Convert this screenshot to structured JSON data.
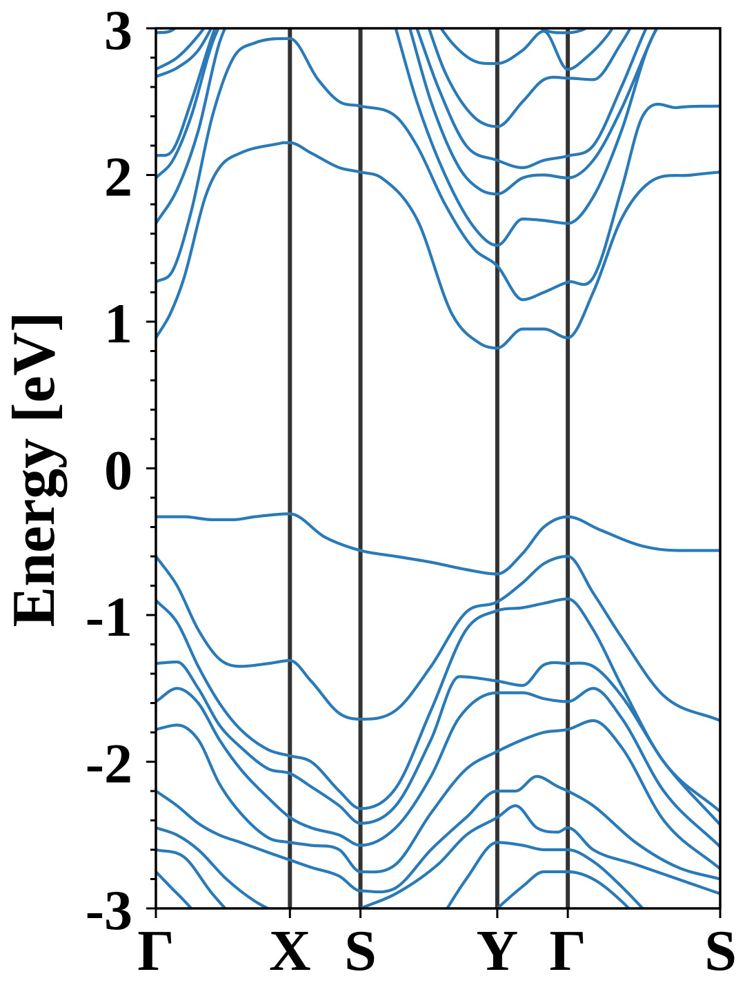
{
  "chart_data": {
    "type": "line",
    "title": "",
    "xlabel": "",
    "ylabel": "Energy [eV]",
    "ylim": [
      -3,
      3
    ],
    "yticks": [
      "-3",
      "-2",
      "-1",
      "0",
      "1",
      "2",
      "3"
    ],
    "yminor_step": 0.2,
    "grid": false,
    "legend": "none",
    "line_color": "#2a7ab8",
    "kline_color": "#333333",
    "xlim": [
      0,
      4.0
    ],
    "kpoints": [
      {
        "label": "Γ",
        "x": 0.0
      },
      {
        "label": "X",
        "x": 0.95
      },
      {
        "label": "S",
        "x": 1.45
      },
      {
        "label": "Y",
        "x": 2.42
      },
      {
        "label": "Γ",
        "x": 2.92
      },
      {
        "label": "S",
        "x": 4.0
      }
    ],
    "bands": [
      {
        "x": [
          0,
          0.2,
          0.4,
          0.55,
          0.7,
          0.95,
          1.2,
          1.45,
          1.7,
          1.95,
          2.2,
          2.42,
          2.6,
          2.75,
          2.92,
          3.15,
          3.45,
          3.7,
          4.0
        ],
        "y": [
          -0.33,
          -0.33,
          -0.35,
          -0.35,
          -0.33,
          -0.31,
          -0.47,
          -0.56,
          -0.6,
          -0.64,
          -0.69,
          -0.72,
          -0.58,
          -0.4,
          -0.33,
          -0.42,
          -0.53,
          -0.56,
          -0.56
        ]
      },
      {
        "x": [
          0,
          0.15,
          0.3,
          0.45,
          0.6,
          0.8,
          0.95,
          1.1,
          1.3,
          1.45,
          1.7,
          1.95,
          2.2,
          2.42,
          2.6,
          2.75,
          2.92,
          3.1,
          3.3,
          3.6,
          4.0
        ],
        "y": [
          -0.6,
          -0.8,
          -1.1,
          -1.3,
          -1.35,
          -1.33,
          -1.31,
          -1.45,
          -1.67,
          -1.71,
          -1.65,
          -1.35,
          -0.98,
          -0.91,
          -0.78,
          -0.65,
          -0.6,
          -0.85,
          -1.15,
          -1.55,
          -1.72
        ]
      },
      {
        "x": [
          0,
          0.15,
          0.3,
          0.45,
          0.6,
          0.8,
          0.95,
          1.1,
          1.3,
          1.45,
          1.7,
          1.95,
          2.2,
          2.42,
          2.6,
          2.75,
          2.92,
          3.1,
          3.3,
          3.6,
          4.0
        ],
        "y": [
          -0.9,
          -1.05,
          -1.35,
          -1.6,
          -1.78,
          -1.92,
          -1.96,
          -2.0,
          -2.2,
          -2.32,
          -2.18,
          -1.65,
          -1.1,
          -0.97,
          -0.95,
          -0.92,
          -0.89,
          -1.1,
          -1.48,
          -2.0,
          -2.34
        ]
      },
      {
        "x": [
          0,
          0.15,
          0.3,
          0.45,
          0.6,
          0.8,
          0.95,
          1.1,
          1.3,
          1.45,
          1.7,
          1.95,
          2.15,
          2.42,
          2.6,
          2.75,
          2.92,
          3.1,
          3.3,
          3.6,
          4.0
        ],
        "y": [
          -1.33,
          -1.32,
          -1.5,
          -1.75,
          -1.9,
          -2.05,
          -2.08,
          -2.17,
          -2.3,
          -2.42,
          -2.3,
          -1.85,
          -1.42,
          -1.45,
          -1.48,
          -1.34,
          -1.33,
          -1.35,
          -1.55,
          -2.0,
          -2.43
        ]
      },
      {
        "x": [
          0,
          0.15,
          0.3,
          0.45,
          0.6,
          0.8,
          0.95,
          1.1,
          1.3,
          1.45,
          1.7,
          1.95,
          2.15,
          2.42,
          2.6,
          2.75,
          2.92,
          3.1,
          3.3,
          3.6,
          4.0
        ],
        "y": [
          -1.59,
          -1.5,
          -1.6,
          -1.85,
          -2.05,
          -2.25,
          -2.38,
          -2.45,
          -2.5,
          -2.57,
          -2.45,
          -2.1,
          -1.7,
          -1.53,
          -1.53,
          -1.57,
          -1.59,
          -1.5,
          -1.7,
          -2.2,
          -2.58
        ]
      },
      {
        "x": [
          0,
          0.15,
          0.3,
          0.45,
          0.6,
          0.8,
          0.95,
          1.1,
          1.3,
          1.45,
          1.7,
          1.95,
          2.2,
          2.42,
          2.6,
          2.75,
          2.92,
          3.1,
          3.3,
          3.6,
          4.0
        ],
        "y": [
          -1.78,
          -1.75,
          -1.85,
          -2.15,
          -2.35,
          -2.52,
          -2.55,
          -2.57,
          -2.6,
          -2.75,
          -2.7,
          -2.35,
          -2.05,
          -1.93,
          -1.85,
          -1.8,
          -1.78,
          -1.72,
          -1.9,
          -2.4,
          -2.73
        ]
      },
      {
        "x": [
          0,
          0.15,
          0.3,
          0.45,
          0.6,
          0.8,
          0.95,
          1.1,
          1.3,
          1.45,
          1.7,
          1.95,
          2.2,
          2.42,
          2.55,
          2.7,
          2.85,
          2.92,
          3.1,
          3.4,
          3.7,
          4.0
        ],
        "y": [
          -2.2,
          -2.3,
          -2.42,
          -2.5,
          -2.55,
          -2.62,
          -2.67,
          -2.72,
          -2.78,
          -2.88,
          -2.86,
          -2.6,
          -2.38,
          -2.2,
          -2.2,
          -2.1,
          -2.17,
          -2.2,
          -2.3,
          -2.55,
          -2.72,
          -2.8
        ]
      },
      {
        "x": [
          0,
          0.15,
          0.3,
          0.5,
          0.7,
          0.9,
          1.0
        ],
        "y": [
          -2.45,
          -2.5,
          -2.6,
          -2.8,
          -2.95,
          -3.05,
          -3.1
        ]
      },
      {
        "x": [
          1.45,
          1.7,
          2.0,
          2.2,
          2.42,
          2.55,
          2.7,
          2.85,
          2.92,
          3.1,
          3.4,
          3.7,
          3.85,
          4.0
        ],
        "y": [
          -3.0,
          -2.9,
          -2.7,
          -2.5,
          -2.38,
          -2.3,
          -2.45,
          -2.48,
          -2.45,
          -2.6,
          -2.7,
          -2.8,
          -2.85,
          -2.9
        ]
      },
      {
        "x": [
          0,
          0.2,
          0.4,
          0.6,
          0.8
        ],
        "y": [
          -2.6,
          -2.65,
          -2.9,
          -3.1,
          -3.2
        ]
      },
      {
        "x": [
          2.0,
          2.2,
          2.42,
          2.6,
          2.75,
          2.92,
          3.1,
          3.3,
          3.5
        ],
        "y": [
          -3.1,
          -2.8,
          -2.55,
          -2.57,
          -2.6,
          -2.6,
          -2.68,
          -2.85,
          -3.05
        ]
      },
      {
        "x": [
          0,
          0.1,
          0.25,
          0.4,
          0.5
        ],
        "y": [
          -2.75,
          -2.85,
          -3.0,
          -3.2,
          -3.3
        ]
      },
      {
        "x": [
          2.2,
          2.42,
          2.6,
          2.75,
          2.92,
          3.1,
          3.3,
          3.45
        ],
        "y": [
          -3.2,
          -3.0,
          -2.85,
          -2.75,
          -2.75,
          -2.8,
          -2.95,
          -3.1
        ]
      },
      {
        "x": [
          0,
          0.1,
          0.2,
          0.35,
          0.45,
          0.6,
          0.9
        ],
        "y": [
          0.89,
          1.05,
          1.3,
          1.85,
          2.05,
          2.15,
          2.22
        ]
      },
      {
        "x": [
          0.9,
          0.95,
          1.1,
          1.3,
          1.45,
          1.6,
          1.85,
          2.1,
          2.3,
          2.42,
          2.6,
          2.75,
          2.92,
          3.1,
          3.3,
          3.5,
          3.8,
          4.0
        ],
        "y": [
          2.22,
          2.22,
          2.15,
          2.05,
          2.02,
          1.98,
          1.7,
          1.05,
          0.85,
          0.82,
          0.95,
          0.95,
          0.89,
          1.2,
          1.7,
          1.95,
          2.0,
          2.02
        ]
      },
      {
        "x": [
          0,
          0.12,
          0.25,
          0.4,
          0.55,
          0.7,
          0.95,
          1.15,
          1.3,
          1.45,
          1.7,
          1.85,
          2.05,
          2.25,
          2.42,
          2.6,
          2.75,
          2.92,
          3.1,
          3.3,
          3.45,
          3.7,
          4.0
        ],
        "y": [
          1.27,
          1.35,
          1.75,
          2.4,
          2.8,
          2.9,
          2.93,
          2.65,
          2.5,
          2.47,
          2.4,
          2.2,
          1.8,
          1.5,
          1.38,
          1.15,
          1.2,
          1.27,
          1.3,
          1.9,
          2.4,
          2.46,
          2.47
        ]
      },
      {
        "x": [
          0,
          0.15,
          0.3,
          0.45,
          0.6
        ],
        "y": [
          1.67,
          1.9,
          2.3,
          2.9,
          3.2
        ]
      },
      {
        "x": [
          1.7,
          1.85,
          2.05,
          2.25,
          2.42,
          2.6,
          2.75,
          2.92,
          3.1,
          3.3,
          3.5,
          3.7
        ],
        "y": [
          3.0,
          2.5,
          2.0,
          1.65,
          1.52,
          1.7,
          1.69,
          1.67,
          1.85,
          2.3,
          2.9,
          3.2
        ]
      },
      {
        "x": [
          0,
          0.12,
          0.25,
          0.4,
          0.55
        ],
        "y": [
          1.98,
          2.1,
          2.4,
          2.9,
          3.2
        ]
      },
      {
        "x": [
          1.8,
          1.95,
          2.15,
          2.3,
          2.42,
          2.6,
          2.75,
          2.92,
          3.1,
          3.3,
          3.5,
          3.65
        ],
        "y": [
          3.0,
          2.5,
          2.05,
          1.9,
          1.87,
          1.98,
          2.0,
          1.98,
          2.1,
          2.45,
          2.9,
          3.2
        ]
      },
      {
        "x": [
          0,
          0.12,
          0.25,
          0.4,
          0.5
        ],
        "y": [
          2.13,
          2.17,
          2.5,
          2.95,
          3.2
        ]
      },
      {
        "x": [
          1.85,
          2.0,
          2.2,
          2.42,
          2.6,
          2.75,
          2.92,
          3.1,
          3.3,
          3.5,
          3.6
        ],
        "y": [
          3.0,
          2.6,
          2.2,
          2.1,
          2.05,
          2.1,
          2.13,
          2.2,
          2.6,
          3.05,
          3.2
        ]
      },
      {
        "x": [
          0,
          0.15,
          0.3,
          0.45,
          0.55
        ],
        "y": [
          2.67,
          2.73,
          2.85,
          3.1,
          3.25
        ]
      },
      {
        "x": [
          1.9,
          2.05,
          2.25,
          2.42,
          2.6,
          2.75,
          2.92,
          3.1,
          3.3,
          3.45
        ],
        "y": [
          3.1,
          2.7,
          2.4,
          2.33,
          2.5,
          2.65,
          2.66,
          2.65,
          2.9,
          3.15
        ]
      },
      {
        "x": [
          0,
          0.15,
          0.3,
          0.45,
          0.55
        ],
        "y": [
          2.72,
          2.8,
          2.95,
          3.15,
          3.3
        ]
      },
      {
        "x": [
          1.95,
          2.1,
          2.25,
          2.42,
          2.6,
          2.75,
          2.92,
          3.05,
          3.2,
          3.3
        ],
        "y": [
          3.1,
          2.9,
          2.78,
          2.76,
          2.85,
          2.98,
          2.72,
          2.8,
          2.95,
          3.1
        ]
      },
      {
        "x": [
          0,
          0.1,
          0.2,
          0.3,
          0.4
        ],
        "y": [
          2.97,
          2.98,
          3.05,
          3.15,
          3.25
        ]
      },
      {
        "x": [
          2.6,
          2.75,
          2.92,
          3.05,
          3.2
        ],
        "y": [
          3.1,
          2.99,
          2.97,
          3.0,
          3.1
        ]
      }
    ]
  }
}
